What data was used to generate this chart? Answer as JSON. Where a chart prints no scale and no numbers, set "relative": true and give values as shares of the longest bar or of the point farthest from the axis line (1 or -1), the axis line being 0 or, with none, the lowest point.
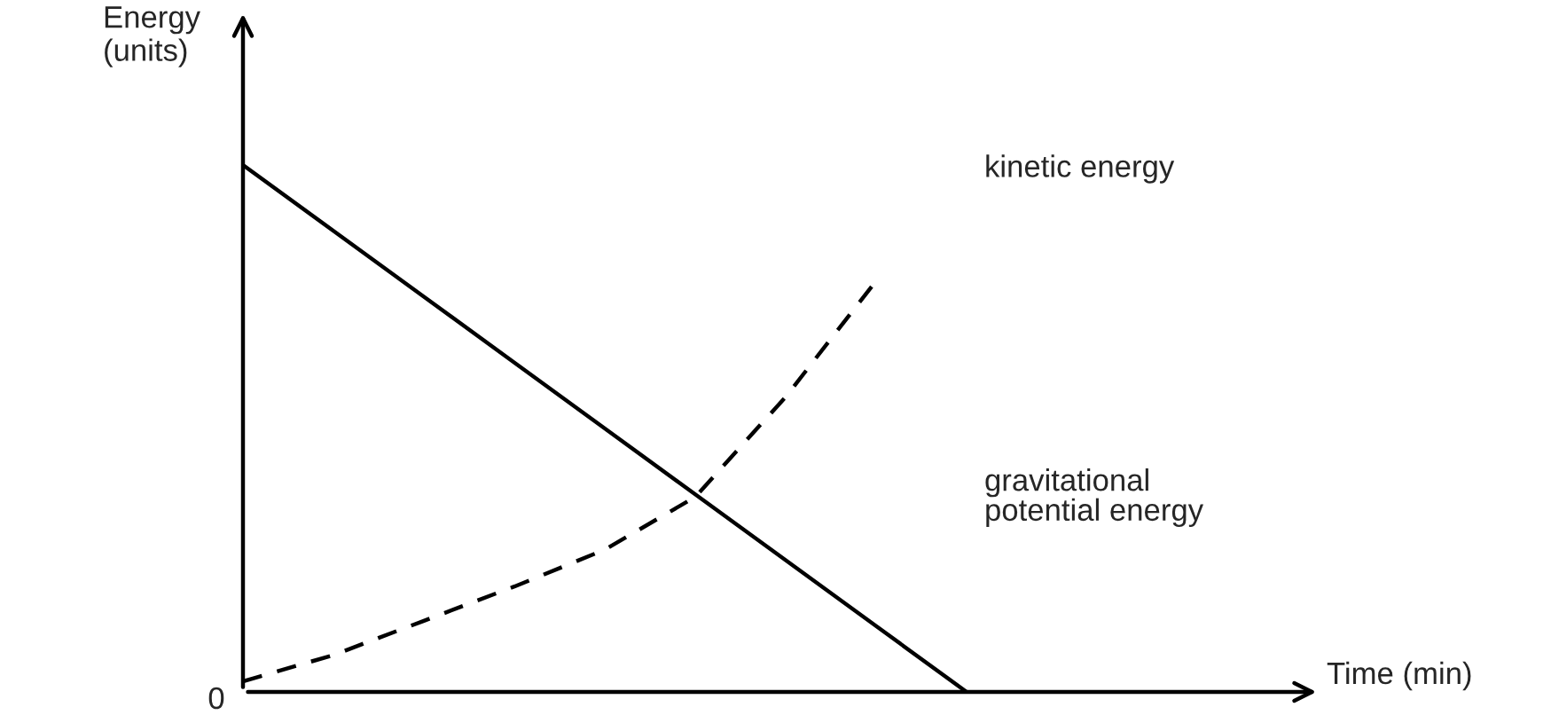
{
  "chart_data": {
    "type": "line",
    "relative": true,
    "ylabel": "Energy\n(units)",
    "categories": [
      null,
      null,
      null,
      null,
      null,
      null,
      null,
      null,
      null
    ],
    "series": [
      {
        "name": "gravitational potential energy",
        "color": "#000000",
        "line_style": "solid",
        "values": [
          1,
          0.875,
          0.75,
          0.625,
          0.5,
          0.375,
          0.25,
          0.125,
          0
        ]
      },
      {
        "name": "kinetic energy",
        "color": "#000000",
        "line_style": "dashed",
        "values": [
          0.02,
          0.07,
          0.135,
          0.2,
          0.27,
          0.37,
          0.56,
          0.78,
          null
        ]
      }
    ],
    "annotations": [
      "0",
      "Time (min)"
    ],
    "legend": false
  }
}
